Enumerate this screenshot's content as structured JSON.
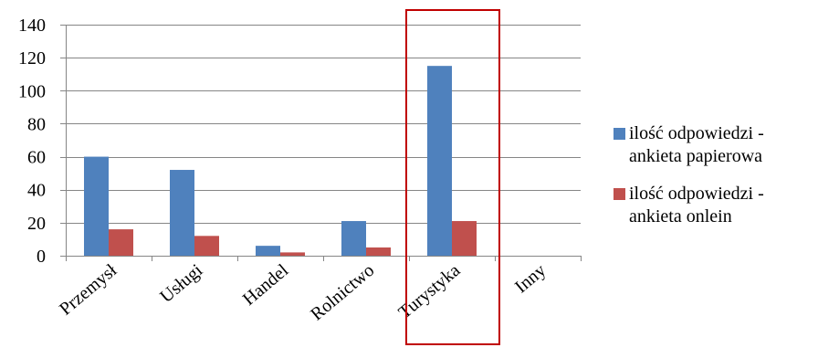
{
  "chart_data": {
    "type": "bar",
    "categories": [
      "Przemysł",
      "Usługi",
      "Handel",
      "Rolnictwo",
      "Turystyka",
      "Inny"
    ],
    "series": [
      {
        "name": "ilość odpowiedzi - ankieta papierowa",
        "legend_lines": [
          "ilość odpowiedzi -",
          "ankieta papierowa"
        ],
        "color": "#4F81BD",
        "values": [
          60,
          52,
          6,
          21,
          115,
          0
        ]
      },
      {
        "name": "ilość odpowiedzi - ankieta onlein",
        "legend_lines": [
          "ilość odpowiedzi -",
          "ankieta onlein"
        ],
        "color": "#C0504D",
        "values": [
          16,
          12,
          2,
          5,
          21,
          0
        ]
      }
    ],
    "ylim": [
      0,
      140
    ],
    "yticks": [
      0,
      20,
      40,
      60,
      80,
      100,
      120,
      140
    ],
    "grid": true,
    "legend_position": "right",
    "highlight": {
      "category": "Turystyka",
      "color": "#C00000"
    }
  }
}
